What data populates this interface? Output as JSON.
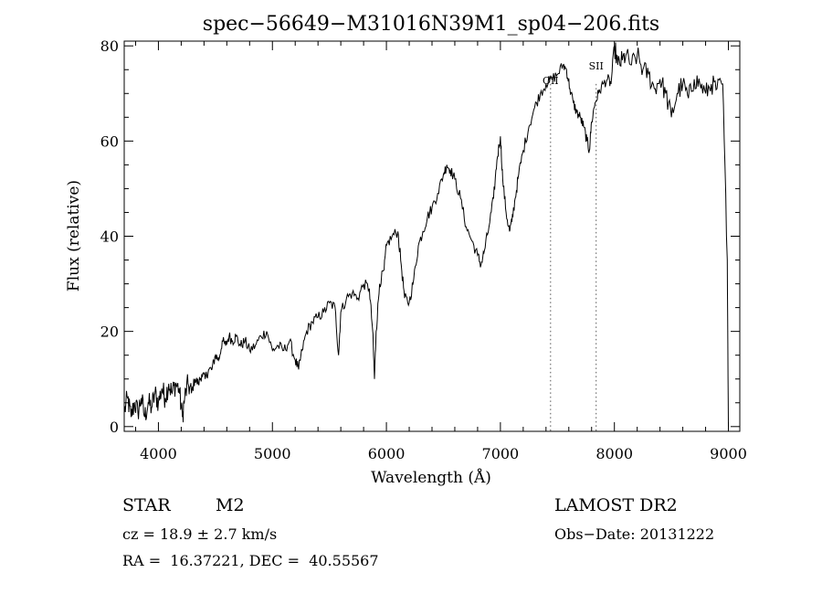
{
  "chart_data": {
    "type": "line",
    "title": "spec−56649−M31016N39M1_sp04−206.fits",
    "xlabel": "Wavelength (Å)",
    "ylabel": "Flux (relative)",
    "xlim": [
      3700,
      9100
    ],
    "ylim": [
      -1,
      81
    ],
    "x_ticks": [
      4000,
      5000,
      6000,
      7000,
      8000,
      9000
    ],
    "y_ticks": [
      0,
      20,
      40,
      60,
      80
    ],
    "grid": false,
    "line_color": "#000000",
    "series": [
      {
        "points": [
          [
            3700,
            3
          ],
          [
            3730,
            6
          ],
          [
            3760,
            2
          ],
          [
            3790,
            5
          ],
          [
            3820,
            3
          ],
          [
            3850,
            6
          ],
          [
            3880,
            2
          ],
          [
            3910,
            5
          ],
          [
            3940,
            4
          ],
          [
            3970,
            7
          ],
          [
            4000,
            5
          ],
          [
            4030,
            8
          ],
          [
            4060,
            6
          ],
          [
            4090,
            9
          ],
          [
            4120,
            7
          ],
          [
            4150,
            9
          ],
          [
            4180,
            8
          ],
          [
            4210,
            2
          ],
          [
            4230,
            6
          ],
          [
            4260,
            9
          ],
          [
            4290,
            7
          ],
          [
            4320,
            10
          ],
          [
            4350,
            9
          ],
          [
            4380,
            11
          ],
          [
            4410,
            10
          ],
          [
            4440,
            12
          ],
          [
            4470,
            12
          ],
          [
            4500,
            15
          ],
          [
            4530,
            14
          ],
          [
            4560,
            18
          ],
          [
            4590,
            17
          ],
          [
            4620,
            19
          ],
          [
            4650,
            18
          ],
          [
            4680,
            19
          ],
          [
            4720,
            17
          ],
          [
            4760,
            18
          ],
          [
            4800,
            16
          ],
          [
            4850,
            17
          ],
          [
            4900,
            19
          ],
          [
            4950,
            20
          ],
          [
            5000,
            16
          ],
          [
            5050,
            17
          ],
          [
            5100,
            16
          ],
          [
            5150,
            18
          ],
          [
            5200,
            14
          ],
          [
            5230,
            12
          ],
          [
            5260,
            16
          ],
          [
            5300,
            20
          ],
          [
            5350,
            22
          ],
          [
            5400,
            23
          ],
          [
            5450,
            24
          ],
          [
            5500,
            26
          ],
          [
            5550,
            25
          ],
          [
            5580,
            15
          ],
          [
            5600,
            24
          ],
          [
            5650,
            27
          ],
          [
            5700,
            28
          ],
          [
            5750,
            27
          ],
          [
            5800,
            30
          ],
          [
            5850,
            29
          ],
          [
            5880,
            20
          ],
          [
            5895,
            10
          ],
          [
            5910,
            20
          ],
          [
            5940,
            30
          ],
          [
            5980,
            33
          ],
          [
            6000,
            38
          ],
          [
            6050,
            40
          ],
          [
            6100,
            41
          ],
          [
            6130,
            34
          ],
          [
            6160,
            27
          ],
          [
            6200,
            26
          ],
          [
            6240,
            31
          ],
          [
            6280,
            38
          ],
          [
            6320,
            41
          ],
          [
            6360,
            44
          ],
          [
            6400,
            46
          ],
          [
            6450,
            49
          ],
          [
            6500,
            53
          ],
          [
            6530,
            55
          ],
          [
            6560,
            54
          ],
          [
            6600,
            52
          ],
          [
            6650,
            48
          ],
          [
            6700,
            42
          ],
          [
            6750,
            39
          ],
          [
            6800,
            36
          ],
          [
            6830,
            34
          ],
          [
            6860,
            37
          ],
          [
            6900,
            42
          ],
          [
            6940,
            48
          ],
          [
            6970,
            56
          ],
          [
            7000,
            61
          ],
          [
            7020,
            52
          ],
          [
            7050,
            45
          ],
          [
            7080,
            41
          ],
          [
            7100,
            43
          ],
          [
            7130,
            48
          ],
          [
            7160,
            53
          ],
          [
            7200,
            58
          ],
          [
            7250,
            63
          ],
          [
            7300,
            67
          ],
          [
            7350,
            70
          ],
          [
            7400,
            72
          ],
          [
            7450,
            73
          ],
          [
            7500,
            74
          ],
          [
            7550,
            76
          ],
          [
            7580,
            75
          ],
          [
            7610,
            71
          ],
          [
            7640,
            68
          ],
          [
            7670,
            66
          ],
          [
            7700,
            65
          ],
          [
            7730,
            63
          ],
          [
            7760,
            60
          ],
          [
            7780,
            58
          ],
          [
            7800,
            64
          ],
          [
            7830,
            68
          ],
          [
            7860,
            70
          ],
          [
            7900,
            72
          ],
          [
            7940,
            73
          ],
          [
            7970,
            72
          ],
          [
            8000,
            80
          ],
          [
            8030,
            76
          ],
          [
            8070,
            77
          ],
          [
            8100,
            78
          ],
          [
            8150,
            76
          ],
          [
            8200,
            78
          ],
          [
            8250,
            75
          ],
          [
            8300,
            74
          ],
          [
            8350,
            71
          ],
          [
            8400,
            73
          ],
          [
            8450,
            70
          ],
          [
            8500,
            65
          ],
          [
            8550,
            70
          ],
          [
            8600,
            72
          ],
          [
            8650,
            69
          ],
          [
            8700,
            73
          ],
          [
            8750,
            72
          ],
          [
            8800,
            70
          ],
          [
            8850,
            72
          ],
          [
            8900,
            71
          ],
          [
            8950,
            72
          ],
          [
            8990,
            35
          ],
          [
            9000,
            0
          ]
        ]
      }
    ],
    "line_annotations": [
      {
        "label": "OII",
        "x": 7440
      },
      {
        "label": "SII",
        "x": 7840
      }
    ]
  },
  "info": {
    "object_class": "STAR",
    "subclass": "M2",
    "survey": "LAMOST DR2",
    "velocity": "cz = 18.9 ± 2.7 km/s",
    "obs_date": "Obs−Date: 20131222",
    "coords": "RA =  16.37221, DEC =  40.55567"
  }
}
